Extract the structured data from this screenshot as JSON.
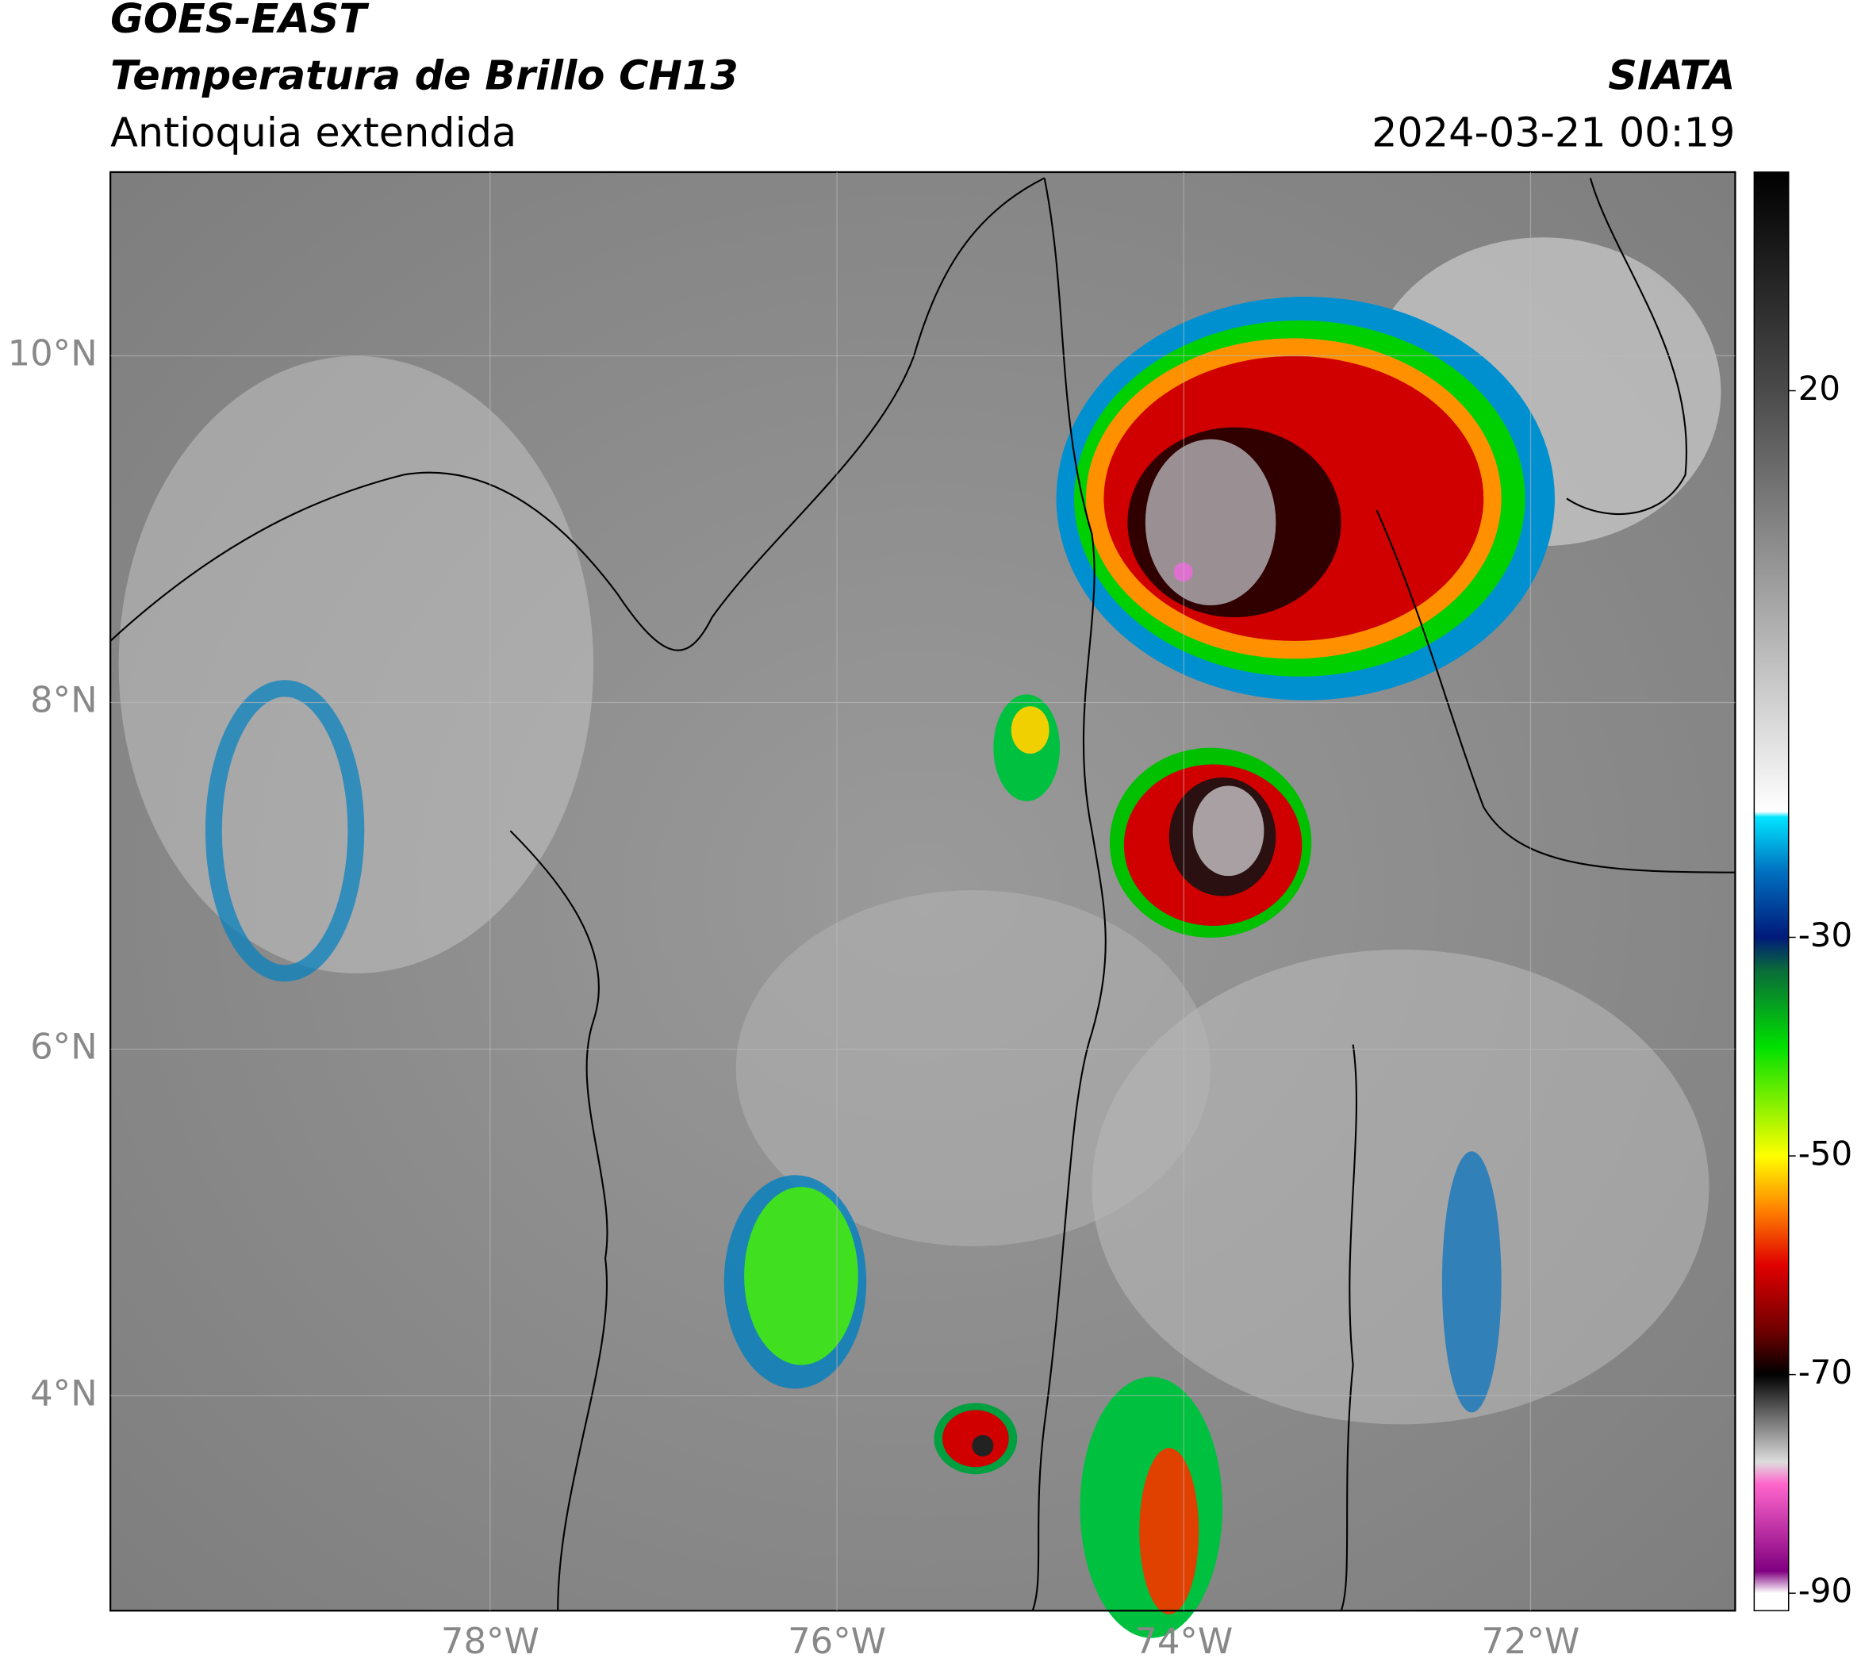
{
  "header": {
    "title": "GOES-EAST",
    "subtitle": "Temperatura de Brillo CH13",
    "region": "Antioquia extendida",
    "source": "SIATA",
    "datetime": "2024-03-21 00:19"
  },
  "map": {
    "xlim": [
      -80.19,
      -70.82
    ],
    "ylim": [
      2.76,
      11.06
    ],
    "xticks": [
      {
        "value": -78,
        "label": "78°W"
      },
      {
        "value": -76,
        "label": "76°W"
      },
      {
        "value": -74,
        "label": "74°W"
      },
      {
        "value": -72,
        "label": "72°W"
      }
    ],
    "yticks": [
      {
        "value": 4,
        "label": "4°N"
      },
      {
        "value": 6,
        "label": "6°N"
      },
      {
        "value": 8,
        "label": "8°N"
      },
      {
        "value": 10,
        "label": "10°N"
      }
    ]
  },
  "colorbar": {
    "lim": [
      -91.6,
      40
    ],
    "ticks": [
      20,
      -30,
      -50,
      -70,
      -90
    ],
    "stops": [
      {
        "value": 40,
        "color": "#000000"
      },
      {
        "value": 20,
        "color": "#4a4a4a"
      },
      {
        "value": -18.5,
        "color": "#ffffff"
      },
      {
        "value": -19,
        "color": "#00e5ff"
      },
      {
        "value": -24,
        "color": "#0070c0"
      },
      {
        "value": -30,
        "color": "#001a7a"
      },
      {
        "value": -33,
        "color": "#0a6b3a"
      },
      {
        "value": -40,
        "color": "#00e000"
      },
      {
        "value": -50,
        "color": "#ffff00"
      },
      {
        "value": -55,
        "color": "#ff8000"
      },
      {
        "value": -60,
        "color": "#e00000"
      },
      {
        "value": -66,
        "color": "#700000"
      },
      {
        "value": -70,
        "color": "#000000"
      },
      {
        "value": -73,
        "color": "#555555"
      },
      {
        "value": -78,
        "color": "#dddddd"
      },
      {
        "value": -80,
        "color": "#ff66cc"
      },
      {
        "value": -88,
        "color": "#800080"
      },
      {
        "value": -90,
        "color": "#ffffff"
      }
    ]
  }
}
